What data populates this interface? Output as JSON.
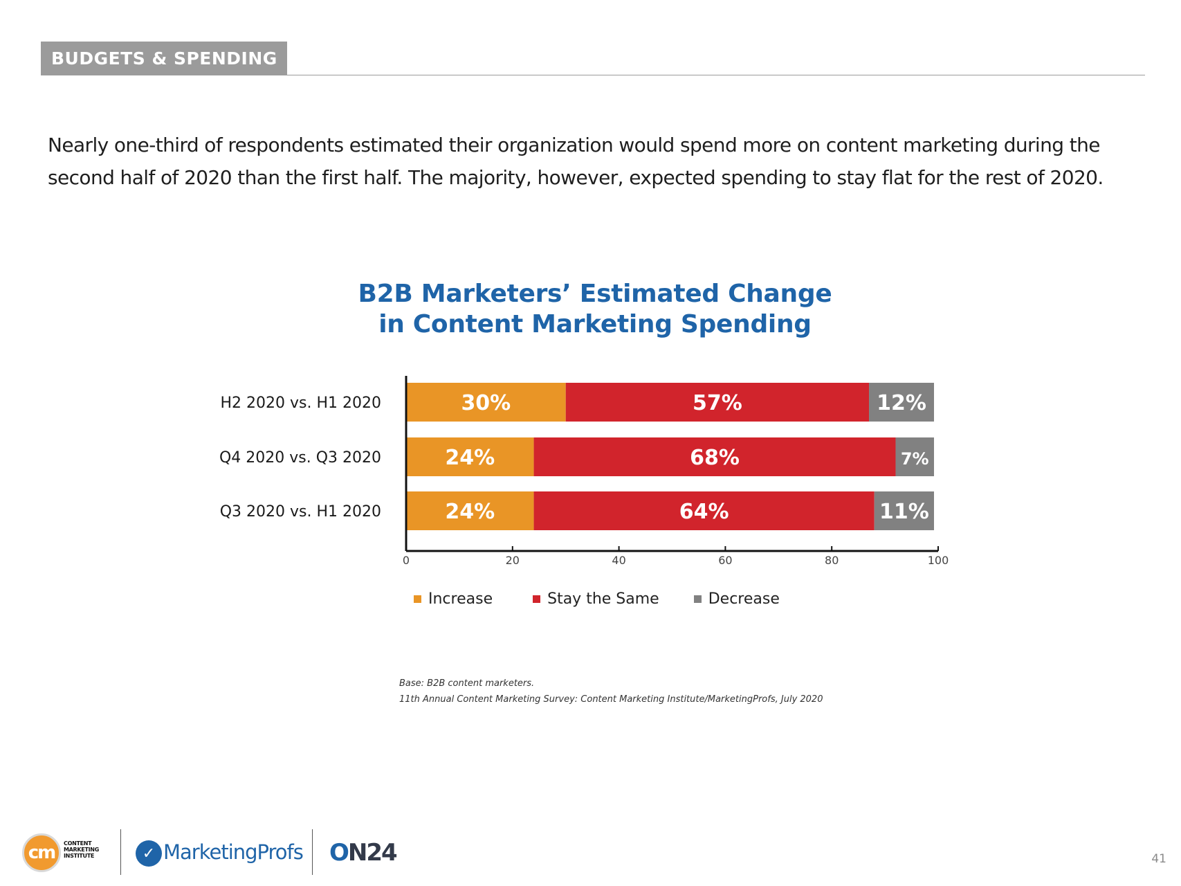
{
  "section": {
    "tag": "BUDGETS & SPENDING"
  },
  "intro": {
    "line1": "Nearly one-third of respondents estimated their organization would spend more on content marketing during the",
    "line2": "second half of 2020 than the first half. The majority, however, expected spending to stay flat for the rest of 2020."
  },
  "chart_data": {
    "type": "bar",
    "orientation": "horizontal",
    "stacked": true,
    "title": "B2B Marketers’ Estimated Change in Content Marketing Spending",
    "title_lines": [
      "B2B Marketers’ Estimated Change",
      "in Content Marketing Spending"
    ],
    "categories": [
      "H2 2020 vs. H1 2020",
      "Q4 2020 vs. Q3 2020",
      "Q3 2020 vs. H1 2020"
    ],
    "series": [
      {
        "name": "Increase",
        "color": "#e99526",
        "values": [
          30,
          24,
          24
        ],
        "labels": [
          "30%",
          "24%",
          "24%"
        ]
      },
      {
        "name": "Stay the Same",
        "color": "#d1242c",
        "values": [
          57,
          68,
          64
        ],
        "labels": [
          "57%",
          "68%",
          "64%"
        ]
      },
      {
        "name": "Decrease",
        "color": "#818181",
        "values": [
          12,
          7,
          11
        ],
        "labels": [
          "12%",
          "7%",
          "11%"
        ]
      }
    ],
    "xlim": [
      0,
      100
    ],
    "xticks": [
      0,
      20,
      40,
      60,
      80,
      100
    ],
    "xlabel": "",
    "ylabel": "",
    "legend": "bottom",
    "grid": false
  },
  "notes": {
    "base": "Base: B2B content marketers.",
    "source": "11th Annual Content Marketing Survey: Content Marketing Institute/MarketingProfs, July 2020"
  },
  "footer": {
    "cmi_logo_mark": "cm",
    "cmi_logo_text": [
      "CONTENT",
      "MARKETING",
      "INSTITUTE"
    ],
    "marketingprofs_text": "MarketingProfs",
    "on24_o": "O",
    "on24_rest": "N24",
    "page_number": "41"
  }
}
